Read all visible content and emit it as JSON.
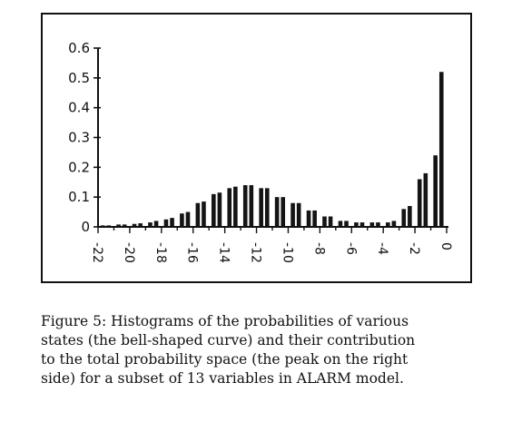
{
  "chart_data": {
    "type": "bar",
    "title": "",
    "xlabel": "",
    "ylabel": "",
    "ylim": [
      0,
      0.6
    ],
    "xlim": [
      -22,
      0
    ],
    "yticks": [
      {
        "value": 0,
        "label": "0"
      },
      {
        "value": 0.1,
        "label": "0.1"
      },
      {
        "value": 0.2,
        "label": "0.2"
      },
      {
        "value": 0.3,
        "label": "0.3"
      },
      {
        "value": 0.4,
        "label": "0.4"
      },
      {
        "value": 0.5,
        "label": "0.5"
      },
      {
        "value": 0.6,
        "label": "0.6"
      }
    ],
    "xticks": [
      {
        "value": -22,
        "label": "-22"
      },
      {
        "value": -20,
        "label": "-20"
      },
      {
        "value": -18,
        "label": "-18"
      },
      {
        "value": -16,
        "label": "-16"
      },
      {
        "value": -14,
        "label": "-14"
      },
      {
        "value": -12,
        "label": "-12"
      },
      {
        "value": -10,
        "label": "-10"
      },
      {
        "value": -8,
        "label": "-8"
      },
      {
        "value": -6,
        "label": "-6"
      },
      {
        "value": -4,
        "label": "-4"
      },
      {
        "value": -2,
        "label": "-2"
      },
      {
        "value": 0,
        "label": "0"
      }
    ],
    "x": [
      -21.5,
      -20.5,
      -19.5,
      -18.5,
      -17.5,
      -16.5,
      -15.5,
      -14.5,
      -13.5,
      -12.5,
      -11.5,
      -10.5,
      -9.5,
      -8.5,
      -7.5,
      -6.5,
      -5.5,
      -4.5,
      -3.5,
      -2.5,
      -1.5,
      -0.5
    ],
    "series": [
      {
        "name": "",
        "values": [
          0.005,
          0.008,
          0.01,
          0.015,
          0.025,
          0.045,
          0.08,
          0.11,
          0.13,
          0.14,
          0.13,
          0.1,
          0.08,
          0.055,
          0.035,
          0.02,
          0.015,
          0.015,
          0.015,
          0.06,
          0.16,
          0.24
        ]
      },
      {
        "name": "",
        "values": [
          0.005,
          0.008,
          0.012,
          0.02,
          0.03,
          0.05,
          0.085,
          0.115,
          0.135,
          0.14,
          0.13,
          0.1,
          0.08,
          0.055,
          0.035,
          0.02,
          0.015,
          0.015,
          0.02,
          0.07,
          0.18,
          0.52
        ]
      }
    ]
  },
  "caption": {
    "lines": [
      "Figure 5:  Histograms of the probabilities of various",
      "states (the bell-shaped curve) and their contribution",
      "to the total probability space (the peak on the right",
      "side) for a subset of 13 variables in ALARM model."
    ]
  }
}
